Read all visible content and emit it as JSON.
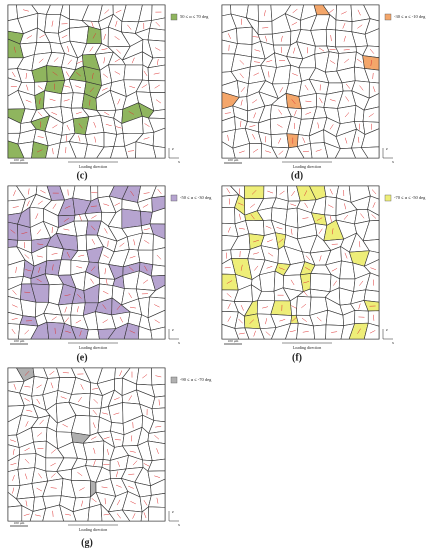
{
  "panels": [
    {
      "label": "(c)",
      "legend": "50 ≤ α ≤ 70 deg",
      "color": "#8fb55e",
      "scale": "100 μm",
      "direction": "Loading direction",
      "axis_z": "z",
      "axis_x": "x"
    },
    {
      "label": "(d)",
      "legend": "-30 ≤ α ≤ -10 deg",
      "color": "#f4a66a",
      "scale": "100 μm",
      "direction": "Loading direction",
      "axis_z": "z",
      "axis_x": "x"
    },
    {
      "label": "(e)",
      "legend": "-50 ≤ α ≤ -30 deg",
      "color": "#b6a4d0",
      "scale": "100 μm",
      "direction": "Loading direction",
      "axis_z": "z",
      "axis_x": "x"
    },
    {
      "label": "(f)",
      "legend": "-70 ≤ α ≤ -50 deg",
      "color": "#eeee78",
      "scale": "100 μm",
      "direction": "Loading direction",
      "axis_z": "z",
      "axis_x": "x"
    },
    {
      "label": "(g)",
      "legend": "-90 ≤ α ≤ -70 deg",
      "color": "#b0b0b0",
      "scale": "100 μm",
      "direction": "Loading direction",
      "axis_z": "z",
      "axis_x": "x"
    }
  ]
}
